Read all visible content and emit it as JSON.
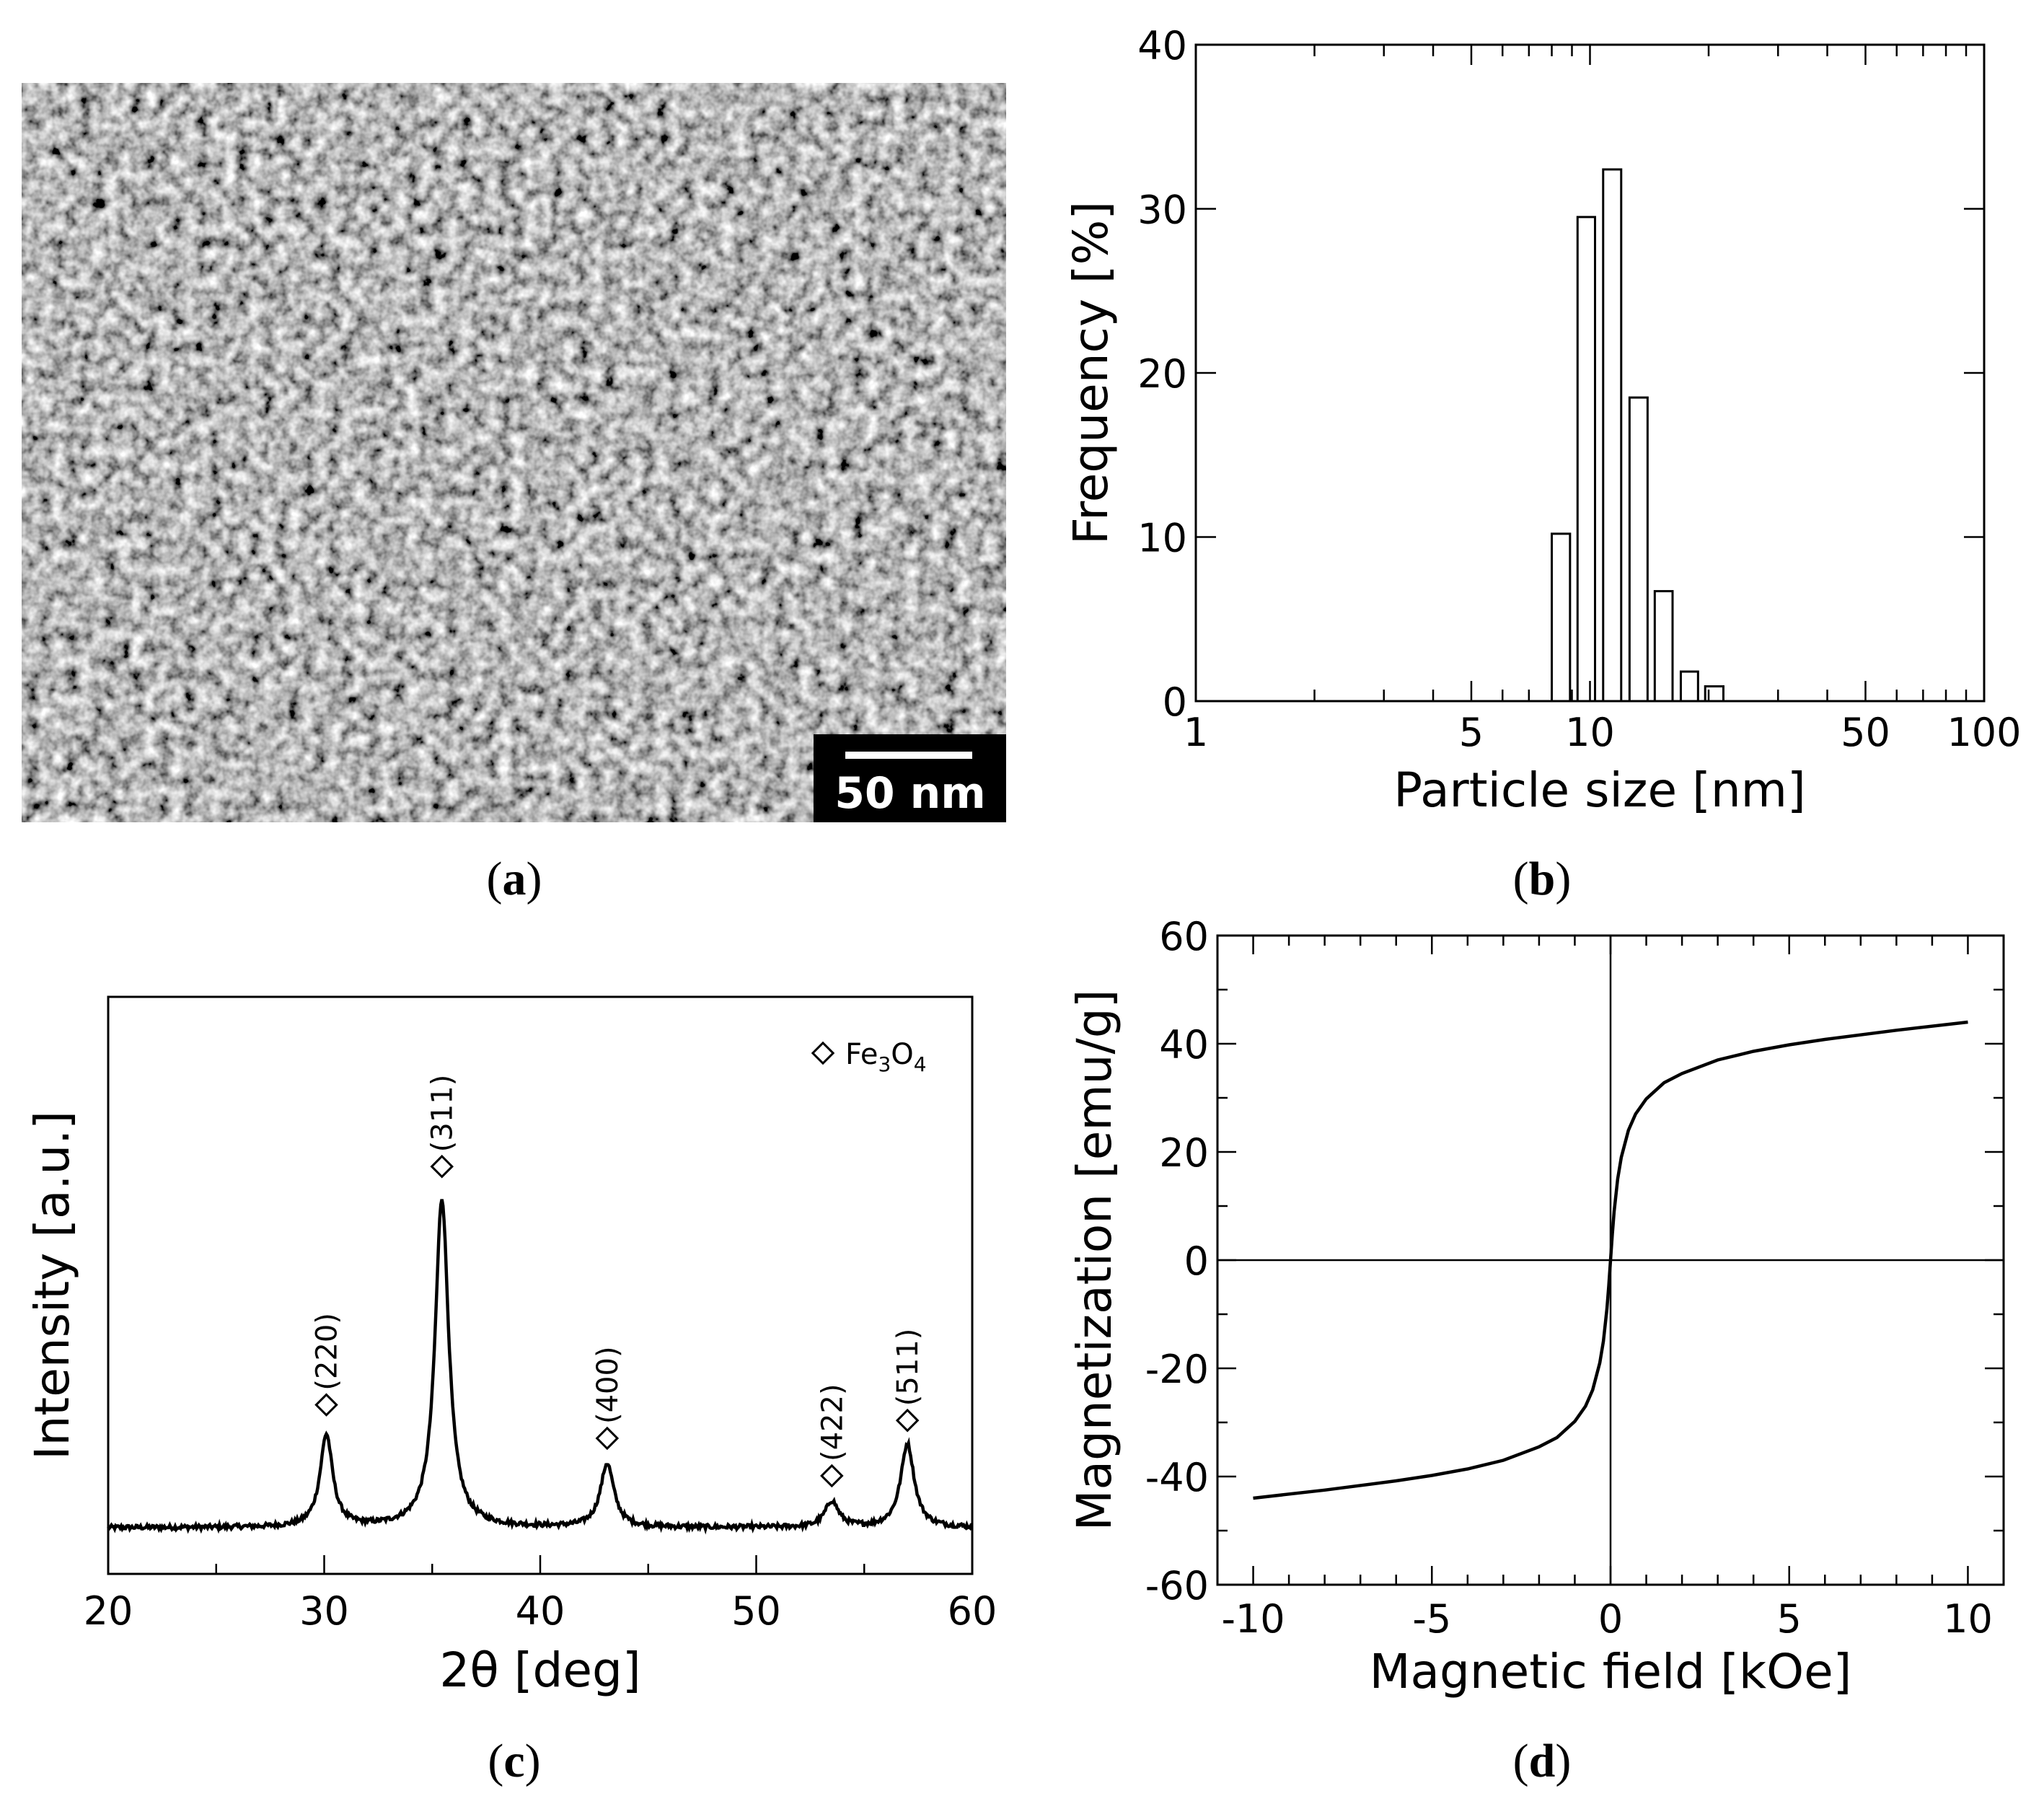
{
  "panel_labels": {
    "a": "a",
    "b": "b",
    "c": "c",
    "d": "d"
  },
  "sem": {
    "scale_bar_label": "50 nm"
  },
  "chart_data": [
    {
      "id": "b",
      "type": "bar",
      "xlabel": "Particle size [nm]",
      "ylabel": "Frequency [%]",
      "xscale": "log",
      "xlim": [
        1,
        100
      ],
      "ylim": [
        0,
        40
      ],
      "xticks": [
        1,
        5,
        10,
        50,
        100
      ],
      "yticks": [
        0,
        10,
        20,
        30,
        40
      ],
      "bins": [
        {
          "lo": 8.0,
          "hi": 8.9,
          "value": 10.2
        },
        {
          "lo": 9.3,
          "hi": 10.3,
          "value": 29.5
        },
        {
          "lo": 10.8,
          "hi": 12.0,
          "value": 32.4
        },
        {
          "lo": 12.6,
          "hi": 14.0,
          "value": 18.5
        },
        {
          "lo": 14.6,
          "hi": 16.2,
          "value": 6.7
        },
        {
          "lo": 17.0,
          "hi": 18.8,
          "value": 1.8
        },
        {
          "lo": 19.6,
          "hi": 21.8,
          "value": 0.9
        }
      ]
    },
    {
      "id": "c",
      "type": "line",
      "xlabel": "2θ [deg]",
      "ylabel": "Intensity [a.u.]",
      "xlim": [
        20,
        60
      ],
      "ylim": [
        0,
        1
      ],
      "xticks": [
        20,
        30,
        40,
        50,
        60
      ],
      "baseline": 0.08,
      "noise": 0.004,
      "peaks": [
        {
          "x": 30.1,
          "height": 0.16,
          "width": 0.35,
          "label": "(220)"
        },
        {
          "x": 35.45,
          "height": 0.57,
          "width": 0.38,
          "label": "(311)"
        },
        {
          "x": 43.1,
          "height": 0.11,
          "width": 0.38,
          "label": "(400)"
        },
        {
          "x": 53.5,
          "height": 0.045,
          "width": 0.38,
          "label": "(422)"
        },
        {
          "x": 57.0,
          "height": 0.145,
          "width": 0.38,
          "label": "(511)"
        }
      ],
      "marker_y": [
        0.293,
        0.706,
        0.235,
        0.17,
        0.266
      ],
      "legend": {
        "label_main": "Fe",
        "sub1": "3",
        "label_mid": "O",
        "sub2": "4",
        "placement": "top-right"
      }
    },
    {
      "id": "d",
      "type": "line",
      "xlabel": "Magnetic field [kOe]",
      "ylabel": "Magnetization [emu/g]",
      "xlim": [
        -11,
        11
      ],
      "ylim": [
        -60,
        60
      ],
      "xticks": [
        -10,
        -5,
        0,
        5,
        10
      ],
      "yticks": [
        -60,
        -40,
        -20,
        0,
        20,
        40,
        60
      ],
      "x": [
        -10,
        -8,
        -6,
        -5,
        -4,
        -3,
        -2,
        -1.5,
        -1,
        -0.7,
        -0.5,
        -0.3,
        -0.2,
        -0.1,
        -0.05,
        0,
        0.05,
        0.1,
        0.2,
        0.3,
        0.5,
        0.7,
        1,
        1.5,
        2,
        3,
        4,
        5,
        6,
        8,
        10
      ],
      "y": [
        -44,
        -42.5,
        -40.8,
        -39.8,
        -38.6,
        -37,
        -34.5,
        -32.8,
        -29.8,
        -27,
        -24,
        -19,
        -15,
        -9,
        -4.8,
        0,
        4.8,
        9,
        15,
        19,
        24,
        27,
        29.8,
        32.8,
        34.5,
        37,
        38.6,
        39.8,
        40.8,
        42.5,
        44
      ]
    }
  ]
}
